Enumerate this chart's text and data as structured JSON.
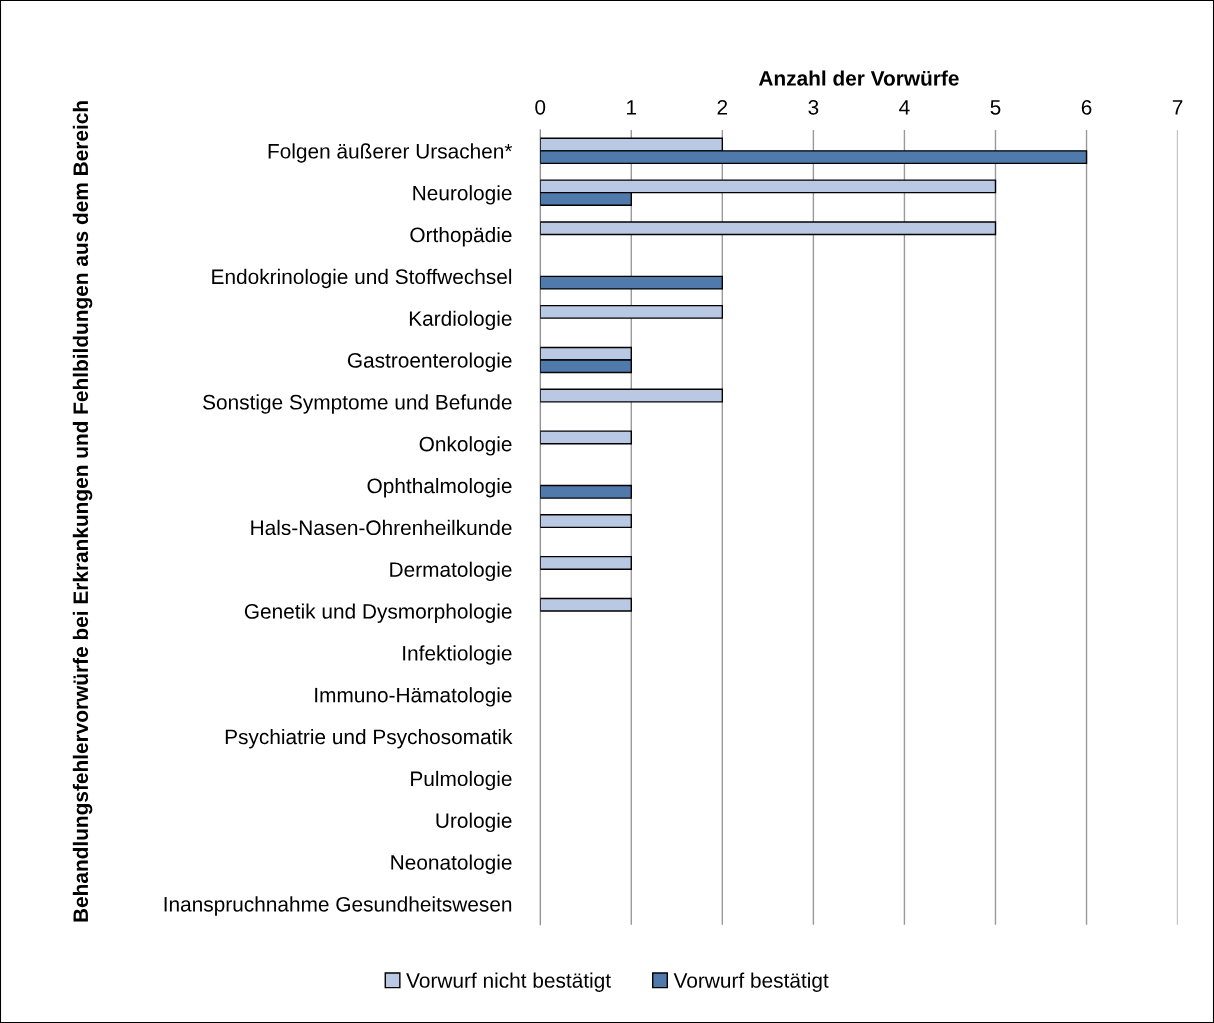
{
  "chart_data": {
    "type": "bar",
    "orientation": "horizontal",
    "xlabel": "Anzahl der Vorwürfe",
    "ylabel": "Behandlungsfehlervorwürfe bei Erkrankungen und Fehlbildungen aus dem Bereich",
    "categories": [
      "Folgen äußerer Ursachen*",
      "Neurologie",
      "Orthopädie",
      "Endokrinologie und Stoffwechsel",
      "Kardiologie",
      "Gastroenterologie",
      "Sonstige Symptome und Befunde",
      "Onkologie",
      "Ophthalmologie",
      "Hals-Nasen-Ohrenheilkunde",
      "Dermatologie",
      "Genetik und Dysmorphologie",
      "Infektiologie",
      "Immuno-Hämatologie",
      "Psychiatrie und Psychosomatik",
      "Pulmologie",
      "Urologie",
      "Neonatologie",
      "Inanspruchnahme Gesundheitswesen"
    ],
    "series": [
      {
        "name": "Vorwurf nicht bestätigt",
        "color": "#b9c9e3",
        "values": [
          2,
          5,
          5,
          0,
          2,
          1,
          2,
          1,
          0,
          1,
          1,
          1,
          0,
          0,
          0,
          0,
          0,
          0,
          0
        ]
      },
      {
        "name": "Vorwurf bestätigt",
        "color": "#4f7aab",
        "values": [
          6,
          1,
          0,
          2,
          0,
          1,
          0,
          0,
          1,
          0,
          0,
          0,
          0,
          0,
          0,
          0,
          0,
          0,
          0
        ]
      }
    ],
    "xlim": [
      0,
      7
    ],
    "xticks": [
      0,
      1,
      2,
      3,
      4,
      5,
      6,
      7
    ],
    "grid": "x",
    "legend": "bottom"
  }
}
